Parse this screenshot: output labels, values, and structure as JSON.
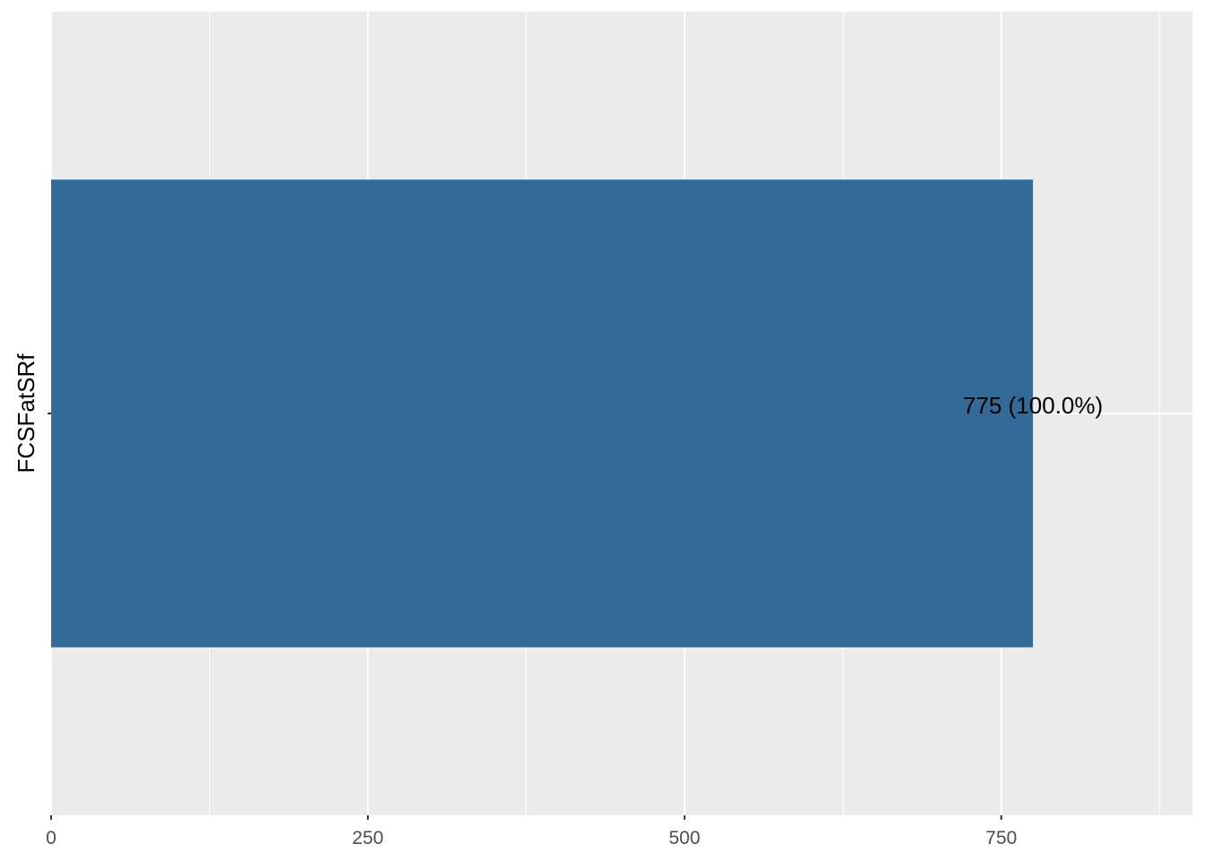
{
  "chart_data": {
    "type": "bar",
    "orientation": "horizontal",
    "categories": [
      "FCSFatSRf"
    ],
    "values": [
      775
    ],
    "data_labels": [
      "775 (100.0%)"
    ],
    "title": "",
    "xlabel": "",
    "ylabel": "",
    "xlim": [
      0,
      901
    ],
    "x_ticks": [
      0,
      250,
      500,
      750
    ],
    "x_tick_labels": [
      "0",
      "250",
      "500",
      "750"
    ],
    "grid": true,
    "legend": "none",
    "colors": {
      "bar": "#336A98",
      "panel": "#EBEBEB",
      "grid": "#FFFFFF"
    }
  }
}
